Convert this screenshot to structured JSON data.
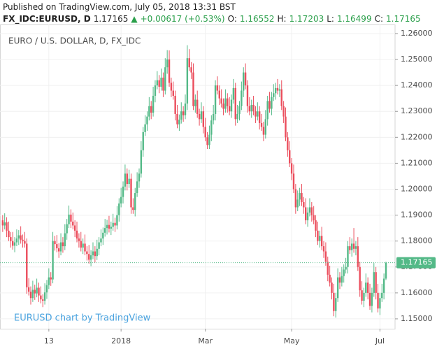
{
  "header": {
    "published": "Published on TradingView.com, July 05, 2018 13:31 BST",
    "symbol": "FX_IDC:EURUSD, D",
    "arrow": "▲",
    "change": "+0.00617 (+0.53%)",
    "ohlc_labels": [
      "O:",
      "H:",
      "L:",
      "C:"
    ]
  },
  "chart_data": {
    "type": "candlestick",
    "title": "EURO / U.S. DOLLAR, D, FX_IDC",
    "watermark": "EURUSD chart by TradingView",
    "up_color": "#53b987",
    "down_color": "#eb4d5c",
    "grid": true,
    "ylim": [
      1.1462,
      1.2635
    ],
    "yticks": [
      {
        "value": 1.15,
        "label": "1.15000"
      },
      {
        "value": 1.16,
        "label": "1.16000"
      },
      {
        "value": 1.17,
        "label": "1.17000"
      },
      {
        "value": 1.18,
        "label": "1.18000"
      },
      {
        "value": 1.19,
        "label": "1.19000"
      },
      {
        "value": 1.2,
        "label": "1.20000"
      },
      {
        "value": 1.21,
        "label": "1.21000"
      },
      {
        "value": 1.22,
        "label": "1.22000"
      },
      {
        "value": 1.23,
        "label": "1.23000"
      },
      {
        "value": 1.24,
        "label": "1.24000"
      },
      {
        "value": 1.25,
        "label": "1.25000"
      },
      {
        "value": 1.26,
        "label": "1.26000"
      }
    ],
    "categories": [
      null,
      null,
      null,
      null,
      null,
      null,
      null,
      null,
      null,
      null,
      null,
      null,
      null,
      null,
      null,
      null,
      null,
      null,
      null,
      null,
      null,
      null,
      null,
      "13",
      null,
      null,
      null,
      null,
      null,
      null,
      null,
      null,
      null,
      null,
      null,
      null,
      null,
      null,
      null,
      null,
      null,
      null,
      null,
      null,
      null,
      null,
      null,
      null,
      null,
      null,
      null,
      null,
      null,
      null,
      null,
      null,
      null,
      null,
      null,
      "2018",
      null,
      null,
      null,
      null,
      null,
      null,
      null,
      null,
      null,
      null,
      null,
      null,
      null,
      null,
      null,
      null,
      null,
      null,
      null,
      null,
      null,
      null,
      null,
      null,
      null,
      null,
      null,
      null,
      null,
      null,
      null,
      null,
      null,
      null,
      null,
      null,
      null,
      null,
      null,
      null,
      null,
      "Mar",
      null,
      null,
      null,
      null,
      null,
      null,
      null,
      null,
      null,
      null,
      null,
      null,
      null,
      null,
      null,
      null,
      null,
      null,
      null,
      null,
      null,
      null,
      null,
      null,
      null,
      null,
      null,
      null,
      null,
      null,
      null,
      null,
      null,
      null,
      null,
      null,
      null,
      null,
      null,
      null,
      null,
      null,
      "May",
      null,
      null,
      null,
      null,
      null,
      null,
      null,
      null,
      null,
      null,
      null,
      null,
      null,
      null,
      null,
      null,
      null,
      null,
      null,
      null,
      null,
      null,
      null,
      null,
      null,
      null,
      null,
      null,
      null,
      null,
      null,
      null,
      null,
      null,
      null,
      null,
      null,
      null,
      null,
      null,
      null,
      null,
      null,
      "Jul",
      null,
      null,
      null
    ],
    "open": [
      1.188,
      1.186,
      1.1872,
      1.184,
      1.1815,
      1.18,
      1.1782,
      1.1795,
      1.181,
      1.1822,
      1.1805,
      1.18,
      1.179,
      1.1622,
      1.1605,
      1.158,
      1.1612,
      1.1598,
      1.162,
      1.159,
      1.1575,
      1.157,
      1.1602,
      1.163,
      1.166,
      1.1652,
      1.18,
      1.1788,
      1.1772,
      1.176,
      1.1795,
      1.178,
      1.183,
      1.1865,
      1.1902,
      1.1875,
      1.186,
      1.184,
      1.181,
      1.18,
      1.1775,
      1.179,
      1.176,
      1.175,
      1.1728,
      1.1745,
      1.176,
      1.1742,
      1.177,
      1.1795,
      1.181,
      1.1832,
      1.185,
      1.1862,
      1.1848,
      1.1855,
      1.187,
      1.186,
      1.19,
      1.1945,
      1.197,
      1.201,
      1.206,
      1.202,
      1.204,
      1.193,
      1.192,
      1.1985,
      1.203,
      1.206,
      1.215,
      1.222,
      1.225,
      1.228,
      1.232,
      1.2295,
      1.236,
      1.24,
      1.242,
      1.2395,
      1.243,
      1.238,
      1.247,
      1.25,
      1.241,
      1.238,
      1.236,
      1.229,
      1.225,
      1.2268,
      1.23,
      1.2285,
      1.233,
      1.2505,
      1.247,
      1.245,
      1.232,
      1.2345,
      1.229,
      1.227,
      1.23,
      1.224,
      1.22,
      1.217,
      1.221,
      1.2265,
      1.229,
      1.24,
      1.238,
      1.235,
      1.233,
      1.231,
      1.235,
      1.232,
      1.23,
      1.2345,
      1.239,
      1.227,
      1.229,
      1.232,
      1.238,
      1.245,
      1.24,
      1.232,
      1.23,
      1.2325,
      1.23,
      1.228,
      1.23,
      1.2255,
      1.224,
      1.221,
      1.227,
      1.234,
      1.231,
      1.2355,
      1.237,
      1.239,
      1.238,
      1.2385,
      1.232,
      1.228,
      1.22,
      1.215,
      1.21,
      1.206,
      1.2,
      1.193,
      1.196,
      1.1985,
      1.195,
      1.193,
      1.188,
      1.191,
      1.193,
      1.19,
      1.188,
      1.184,
      1.18,
      1.182,
      1.178,
      1.176,
      1.172,
      1.167,
      1.164,
      1.16,
      1.153,
      1.158,
      1.166,
      1.164,
      1.1665,
      1.169,
      1.17,
      1.178,
      1.1765,
      1.179,
      1.177,
      1.178,
      1.17,
      1.161,
      1.157,
      1.16,
      1.164,
      1.16,
      1.155,
      1.16,
      1.168,
      1.16,
      1.154,
      1.158,
      1.16,
      1.16552
    ],
    "high": [
      1.19,
      1.1907,
      1.1892,
      1.1875,
      1.1835,
      1.1835,
      1.1815,
      1.1845,
      1.1842,
      1.1857,
      1.1825,
      1.1835,
      1.181,
      1.1657,
      1.1625,
      1.1647,
      1.1632,
      1.1655,
      1.164,
      1.1625,
      1.1595,
      1.1637,
      1.165,
      1.1695,
      1.168,
      1.1835,
      1.182,
      1.1823,
      1.1792,
      1.183,
      1.1815,
      1.1865,
      1.1885,
      1.1937,
      1.1922,
      1.191,
      1.188,
      1.1875,
      1.183,
      1.1835,
      1.181,
      1.1825,
      1.178,
      1.1785,
      1.1765,
      1.1795,
      1.178,
      1.1805,
      1.1815,
      1.1845,
      1.1852,
      1.1885,
      1.1882,
      1.1897,
      1.1875,
      1.1905,
      1.189,
      1.1935,
      1.1965,
      1.2005,
      1.203,
      1.2095,
      1.208,
      1.2075,
      1.206,
      1.1965,
      1.2005,
      1.2065,
      1.208,
      1.2185,
      1.224,
      1.2285,
      1.23,
      1.2355,
      1.234,
      1.2395,
      1.242,
      1.2455,
      1.244,
      1.2465,
      1.245,
      1.2505,
      1.2536,
      1.2535,
      1.243,
      1.2415,
      1.238,
      1.2325,
      1.2288,
      1.2335,
      1.232,
      1.2365,
      1.2555,
      1.254,
      1.249,
      1.2485,
      1.2365,
      1.238,
      1.231,
      1.2335,
      1.232,
      1.2275,
      1.222,
      1.2245,
      1.2285,
      1.2325,
      1.242,
      1.2435,
      1.24,
      1.2385,
      1.235,
      1.2385,
      1.237,
      1.2355,
      1.2365,
      1.2425,
      1.241,
      1.2325,
      1.234,
      1.2415,
      1.247,
      1.2485,
      1.242,
      1.2355,
      1.2345,
      1.236,
      1.232,
      1.2335,
      1.232,
      1.229,
      1.226,
      1.2305,
      1.236,
      1.2375,
      1.2375,
      1.2405,
      1.241,
      1.2425,
      1.2405,
      1.242,
      1.234,
      1.2315,
      1.222,
      1.2185,
      1.212,
      1.2095,
      1.202,
      1.1995,
      1.2005,
      1.202,
      1.197,
      1.1965,
      1.193,
      1.1965,
      1.195,
      1.1935,
      1.19,
      1.1875,
      1.184,
      1.1855,
      1.18,
      1.1795,
      1.174,
      1.1705,
      1.166,
      1.1635,
      1.16,
      1.1695,
      1.168,
      1.17,
      1.171,
      1.1735,
      1.18,
      1.1815,
      1.181,
      1.185,
      1.18,
      1.1815,
      1.172,
      1.1645,
      1.162,
      1.1675,
      1.166,
      1.1635,
      1.162,
      1.1715,
      1.17,
      1.1635,
      1.16,
      1.1635,
      1.1675,
      1.17203
    ],
    "low": [
      1.1835,
      1.1845,
      1.1815,
      1.18,
      1.1775,
      1.1767,
      1.1757,
      1.178,
      1.1785,
      1.179,
      1.1775,
      1.1775,
      1.1597,
      1.159,
      1.1555,
      1.1565,
      1.1573,
      1.1583,
      1.1565,
      1.156,
      1.1545,
      1.1555,
      1.1577,
      1.1615,
      1.1627,
      1.1637,
      1.1763,
      1.1757,
      1.1735,
      1.1745,
      1.1755,
      1.1765,
      1.1805,
      1.185,
      1.185,
      1.1845,
      1.1815,
      1.1795,
      1.1775,
      1.176,
      1.175,
      1.1745,
      1.1725,
      1.1713,
      1.1703,
      1.173,
      1.1717,
      1.1727,
      1.1745,
      1.178,
      1.1785,
      1.1817,
      1.1825,
      1.1833,
      1.1823,
      1.184,
      1.1835,
      1.1845,
      1.1875,
      1.193,
      1.1945,
      1.1995,
      1.1995,
      1.2005,
      1.1905,
      1.1905,
      1.1895,
      1.197,
      1.2005,
      1.2045,
      1.2125,
      1.2205,
      1.2225,
      1.2265,
      1.227,
      1.228,
      1.2335,
      1.2385,
      1.237,
      1.238,
      1.2355,
      1.2365,
      1.2445,
      1.2395,
      1.2355,
      1.2345,
      1.2265,
      1.2235,
      1.2225,
      1.2253,
      1.226,
      1.227,
      1.2305,
      1.2455,
      1.2425,
      1.2305,
      1.2295,
      1.2275,
      1.2245,
      1.2255,
      1.2215,
      1.2185,
      1.2155,
      1.2155,
      1.2185,
      1.225,
      1.2265,
      1.2365,
      1.2325,
      1.2315,
      1.2285,
      1.2295,
      1.2295,
      1.2285,
      1.2275,
      1.233,
      1.2245,
      1.2255,
      1.2265,
      1.2305,
      1.2355,
      1.2385,
      1.2295,
      1.2285,
      1.2275,
      1.2285,
      1.2255,
      1.2265,
      1.223,
      1.2225,
      1.2185,
      1.2195,
      1.2245,
      1.2295,
      1.2285,
      1.234,
      1.2345,
      1.2365,
      1.2355,
      1.2305,
      1.2255,
      1.2185,
      1.2125,
      1.2085,
      1.2035,
      1.1985,
      1.1905,
      1.1915,
      1.1935,
      1.1935,
      1.1905,
      1.1865,
      1.1855,
      1.1895,
      1.1875,
      1.1865,
      1.1815,
      1.1785,
      1.1775,
      1.1765,
      1.1735,
      1.1705,
      1.1645,
      1.1625,
      1.1575,
      1.151,
      1.1505,
      1.1565,
      1.1615,
      1.1625,
      1.164,
      1.1675,
      1.1675,
      1.175,
      1.174,
      1.1755,
      1.1745,
      1.1685,
      1.1585,
      1.1555,
      1.1545,
      1.1585,
      1.1575,
      1.1535,
      1.1525,
      1.1585,
      1.1575,
      1.1525,
      1.1515,
      1.1565,
      1.1575,
      1.16499
    ],
    "close": [
      1.186,
      1.1872,
      1.184,
      1.1815,
      1.18,
      1.1782,
      1.1795,
      1.181,
      1.1822,
      1.1805,
      1.18,
      1.179,
      1.1622,
      1.1605,
      1.158,
      1.1612,
      1.1598,
      1.162,
      1.159,
      1.1575,
      1.157,
      1.1602,
      1.163,
      1.166,
      1.1652,
      1.18,
      1.1788,
      1.1772,
      1.176,
      1.1795,
      1.178,
      1.183,
      1.1865,
      1.1902,
      1.1875,
      1.186,
      1.184,
      1.181,
      1.18,
      1.1775,
      1.179,
      1.176,
      1.175,
      1.1728,
      1.1745,
      1.176,
      1.1742,
      1.177,
      1.1795,
      1.181,
      1.1832,
      1.185,
      1.1862,
      1.1848,
      1.1855,
      1.187,
      1.186,
      1.19,
      1.1945,
      1.197,
      1.201,
      1.206,
      1.202,
      1.204,
      1.193,
      1.192,
      1.1985,
      1.203,
      1.206,
      1.215,
      1.222,
      1.225,
      1.228,
      1.232,
      1.2295,
      1.236,
      1.24,
      1.242,
      1.2395,
      1.243,
      1.238,
      1.247,
      1.25,
      1.241,
      1.238,
      1.236,
      1.229,
      1.225,
      1.2268,
      1.23,
      1.2285,
      1.233,
      1.2505,
      1.247,
      1.245,
      1.232,
      1.2345,
      1.229,
      1.227,
      1.23,
      1.224,
      1.22,
      1.217,
      1.221,
      1.2265,
      1.229,
      1.24,
      1.238,
      1.235,
      1.233,
      1.231,
      1.235,
      1.232,
      1.23,
      1.2345,
      1.239,
      1.227,
      1.229,
      1.232,
      1.238,
      1.245,
      1.24,
      1.232,
      1.23,
      1.2325,
      1.23,
      1.228,
      1.23,
      1.2255,
      1.224,
      1.221,
      1.227,
      1.234,
      1.231,
      1.2355,
      1.237,
      1.239,
      1.238,
      1.2385,
      1.232,
      1.228,
      1.22,
      1.215,
      1.21,
      1.206,
      1.2,
      1.193,
      1.196,
      1.1985,
      1.195,
      1.193,
      1.188,
      1.191,
      1.193,
      1.19,
      1.188,
      1.184,
      1.18,
      1.182,
      1.178,
      1.176,
      1.172,
      1.167,
      1.164,
      1.16,
      1.153,
      1.158,
      1.166,
      1.164,
      1.1665,
      1.169,
      1.17,
      1.178,
      1.1765,
      1.179,
      1.177,
      1.178,
      1.17,
      1.161,
      1.157,
      1.16,
      1.164,
      1.16,
      1.155,
      1.16,
      1.168,
      1.16,
      1.154,
      1.158,
      1.16,
      1.1655,
      1.17165
    ]
  }
}
